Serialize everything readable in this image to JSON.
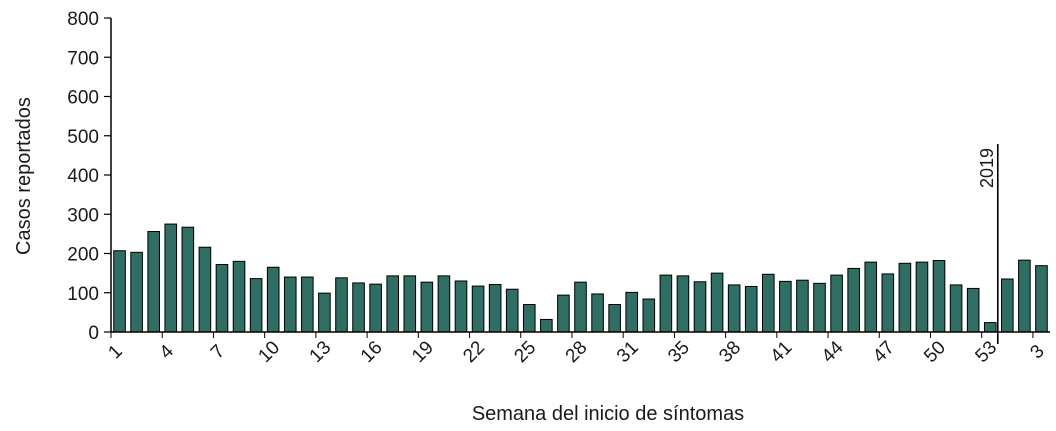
{
  "chart_data": {
    "type": "bar",
    "xlabel": "Semana del inicio de síntomas",
    "ylabel": "Casos reportados",
    "ylim": [
      0,
      800
    ],
    "yticks": [
      0,
      100,
      200,
      300,
      400,
      500,
      600,
      700,
      800
    ],
    "bar_color": "#2f6e62",
    "categories": [
      "1",
      "2",
      "3",
      "4",
      "5",
      "6",
      "7",
      "8",
      "9",
      "10",
      "11",
      "12",
      "13",
      "14",
      "15",
      "16",
      "17",
      "18",
      "19",
      "20",
      "21",
      "22",
      "23",
      "24",
      "25",
      "26",
      "27",
      "28",
      "29",
      "30",
      "31",
      "32",
      "34",
      "35",
      "36",
      "37",
      "38",
      "39",
      "40",
      "41",
      "42",
      "43",
      "44",
      "45",
      "46",
      "47",
      "48",
      "49",
      "50",
      "51",
      "52",
      "53",
      "1",
      "2",
      "3"
    ],
    "xtick_labels": [
      "1",
      "4",
      "7",
      "10",
      "13",
      "16",
      "19",
      "22",
      "25",
      "28",
      "31",
      "35",
      "38",
      "41",
      "44",
      "47",
      "50",
      "53",
      "3"
    ],
    "values": [
      207,
      203,
      256,
      275,
      267,
      216,
      172,
      180,
      136,
      165,
      140,
      140,
      99,
      138,
      125,
      122,
      143,
      143,
      127,
      143,
      130,
      117,
      121,
      109,
      70,
      32,
      94,
      127,
      97,
      70,
      101,
      84,
      145,
      143,
      128,
      150,
      120,
      116,
      147,
      129,
      132,
      124,
      145,
      162,
      178,
      148,
      175,
      178,
      182,
      120,
      111,
      24,
      135,
      183,
      169
    ],
    "annotation": {
      "text": "2019",
      "after_index": 51
    }
  }
}
